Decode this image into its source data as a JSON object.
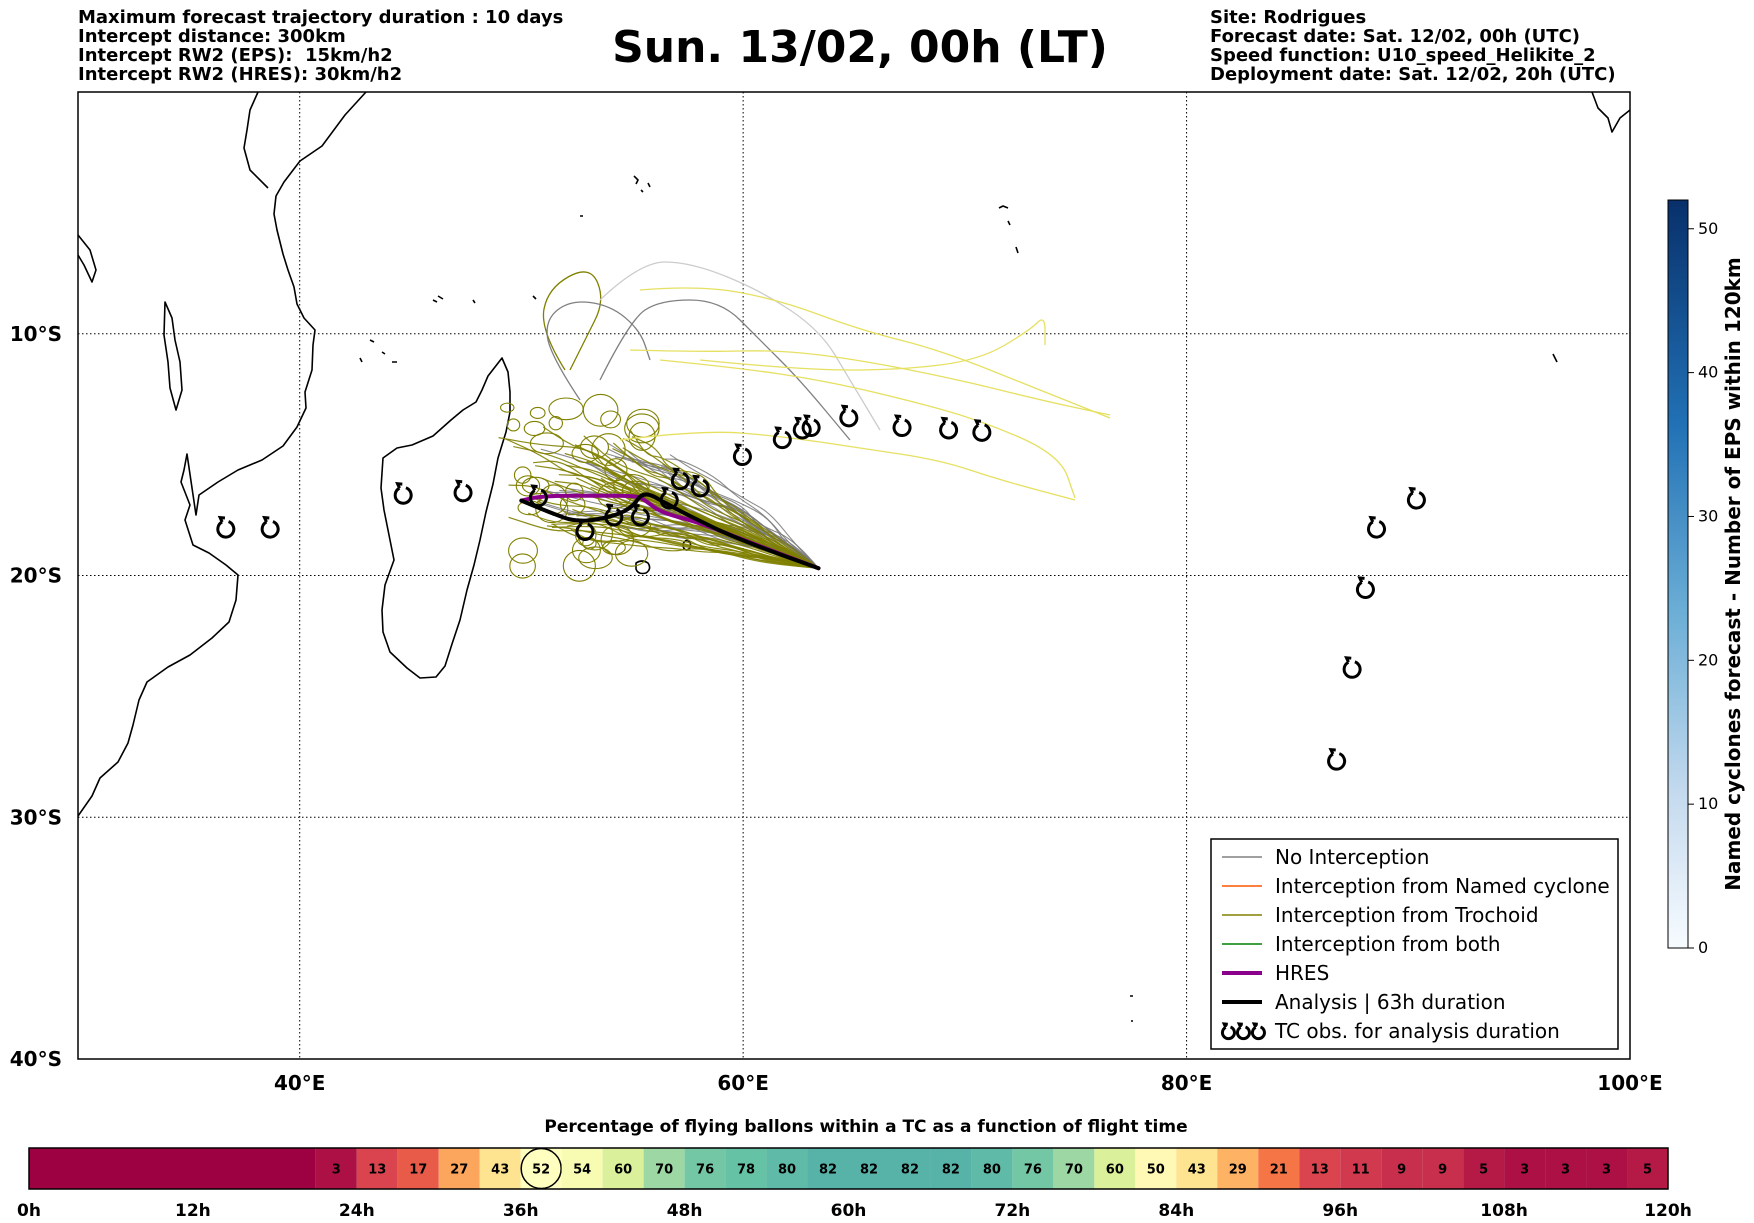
{
  "header": {
    "left_lines": [
      "Maximum forecast trajectory duration : 10 days",
      "Intercept distance: 300km",
      "Intercept RW2 (EPS):  15km/h2",
      "Intercept RW2 (HRES): 30km/h2"
    ],
    "title": "Sun. 13/02, 00h (LT)",
    "right_lines": [
      "Site: Rodrigues",
      "Forecast date: Sat. 12/02, 00h (UTC)",
      "Speed function: U10_speed_Helikite_2",
      "Deployment date: Sat. 12/02, 20h (UTC)"
    ]
  },
  "chart_data": [
    {
      "type": "map",
      "xlim": [
        30,
        100
      ],
      "ylim": [
        -40,
        0
      ],
      "x_ticks": [
        40,
        60,
        80,
        100
      ],
      "x_tick_labels": [
        "40°E",
        "60°E",
        "80°E",
        "100°E"
      ],
      "y_ticks": [
        -10,
        -20,
        -30,
        -40
      ],
      "y_tick_labels": [
        "10°S",
        "20°S",
        "30°S",
        "40°S"
      ],
      "grid": true,
      "legend_position": "bottom-right",
      "legend": [
        {
          "label": "No Interception",
          "color": "#808080",
          "style": "thin-line"
        },
        {
          "label": "Interception from Named cyclone",
          "color": "#ff5500",
          "style": "thin-line"
        },
        {
          "label": "Interception from Trochoid",
          "color": "#808000",
          "style": "thin-line"
        },
        {
          "label": "Interception from both",
          "color": "#008000",
          "style": "thin-line"
        },
        {
          "label": "HRES",
          "color": "#8b008b",
          "style": "thick-line"
        },
        {
          "label": "Analysis | 63h duration",
          "color": "#000000",
          "style": "thick-line"
        },
        {
          "label": "TC obs. for analysis duration",
          "color": "#000000",
          "style": "tc-symbol"
        }
      ],
      "release_point": [
        63.4,
        -19.7
      ],
      "hres_track": [
        [
          63.4,
          -19.7
        ],
        [
          60.5,
          -18.7
        ],
        [
          58.0,
          -17.8
        ],
        [
          56.3,
          -17.4
        ],
        [
          55.6,
          -16.9
        ],
        [
          55.2,
          -16.7
        ],
        [
          53.5,
          -16.7
        ],
        [
          51.0,
          -16.7
        ],
        [
          50.0,
          -16.9
        ]
      ],
      "analysis_track": [
        [
          63.4,
          -19.7
        ],
        [
          60.0,
          -18.6
        ],
        [
          57.5,
          -17.5
        ],
        [
          56.5,
          -17.0
        ],
        [
          55.5,
          -16.5
        ],
        [
          55.0,
          -17.2
        ],
        [
          54.0,
          -17.6
        ],
        [
          52.5,
          -17.8
        ],
        [
          51.3,
          -17.4
        ],
        [
          50.0,
          -16.9
        ]
      ],
      "tc_obs": [
        [
          36.7,
          -18.1
        ],
        [
          38.7,
          -18.1
        ],
        [
          44.7,
          -16.7
        ],
        [
          47.4,
          -16.6
        ],
        [
          50.8,
          -16.8
        ],
        [
          52.9,
          -18.2
        ],
        [
          54.2,
          -17.6
        ],
        [
          55.4,
          -17.6
        ],
        [
          56.7,
          -16.9
        ],
        [
          57.2,
          -16.1
        ],
        [
          58.1,
          -16.4
        ],
        [
          60.0,
          -15.1
        ],
        [
          61.8,
          -14.4
        ],
        [
          62.7,
          -14.0
        ],
        [
          63.1,
          -13.9
        ],
        [
          64.8,
          -13.5
        ],
        [
          67.2,
          -13.9
        ],
        [
          69.3,
          -14.0
        ],
        [
          70.8,
          -14.1
        ],
        [
          86.8,
          -27.7
        ],
        [
          87.5,
          -23.9
        ],
        [
          88.1,
          -20.6
        ],
        [
          88.6,
          -18.1
        ],
        [
          90.4,
          -16.9
        ]
      ],
      "colorbar": {
        "label": "Named cyclones forecast - Number of EPS within 120km",
        "range": [
          0,
          52
        ],
        "ticks": [
          0,
          10,
          20,
          30,
          40,
          50
        ],
        "colors": [
          "#f7fbff",
          "#c6dbef",
          "#6baed6",
          "#2171b5",
          "#08306b"
        ]
      }
    },
    {
      "type": "heatmap",
      "title": "Percentage of flying ballons within a TC as a function of flight time",
      "x_range_hours": [
        0,
        120
      ],
      "x_ticks": [
        0,
        12,
        24,
        36,
        48,
        60,
        72,
        84,
        96,
        108,
        120
      ],
      "x_tick_labels": [
        "0h",
        "12h",
        "24h",
        "36h",
        "48h",
        "60h",
        "72h",
        "84h",
        "96h",
        "108h",
        "120h"
      ],
      "cell_hours": 3,
      "cells_start_hour": 21,
      "values": [
        3,
        13,
        17,
        27,
        43,
        52,
        54,
        60,
        70,
        76,
        78,
        80,
        82,
        82,
        82,
        82,
        80,
        76,
        70,
        60,
        50,
        43,
        29,
        21,
        13,
        11,
        9,
        9,
        5,
        3,
        3,
        3,
        5
      ],
      "highlighted_value_index": 5,
      "empty_color": "#9e0142"
    }
  ]
}
